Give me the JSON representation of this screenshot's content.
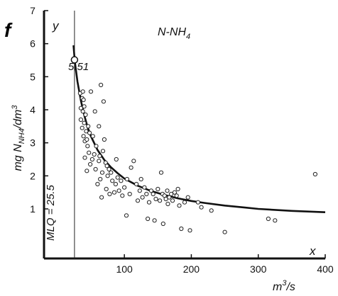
{
  "chart_data": {
    "type": "scatter",
    "panel_letter": "f",
    "title": "N-NH",
    "title_subscript": "4",
    "ylabel_prefix": "mg N",
    "ylabel_subscript": "NH4",
    "ylabel_suffix": "/dm",
    "ylabel_superscript": "3",
    "xlabel_base": "m",
    "xlabel_superscript": "3",
    "xlabel_suffix": "/s",
    "x_axis_letter": "x",
    "y_axis_letter": "y",
    "xlim": [
      -20,
      400
    ],
    "ylim": [
      -0.5,
      7
    ],
    "x_ticks": [
      100,
      200,
      300,
      400
    ],
    "y_ticks": [
      1,
      2,
      3,
      4,
      5,
      6,
      7
    ],
    "grid": false,
    "reference_line": {
      "label": "MLQ = 25.5",
      "x": 25.5
    },
    "highlight_point": {
      "x": 25.5,
      "y": 5.51,
      "label": "5.51"
    },
    "fit_curve": [
      [
        24,
        5.95
      ],
      [
        26,
        5.45
      ],
      [
        30,
        4.85
      ],
      [
        35,
        4.28
      ],
      [
        40,
        3.84
      ],
      [
        45,
        3.48
      ],
      [
        50,
        3.2
      ],
      [
        60,
        2.78
      ],
      [
        70,
        2.48
      ],
      [
        80,
        2.26
      ],
      [
        90,
        2.08
      ],
      [
        100,
        1.92
      ],
      [
        120,
        1.7
      ],
      [
        140,
        1.54
      ],
      [
        160,
        1.42
      ],
      [
        180,
        1.32
      ],
      [
        200,
        1.24
      ],
      [
        220,
        1.18
      ],
      [
        250,
        1.1
      ],
      [
        280,
        1.04
      ],
      [
        300,
        1.0
      ],
      [
        350,
        0.94
      ],
      [
        400,
        0.9
      ]
    ],
    "points": [
      [
        34,
        4.5
      ],
      [
        35,
        4.05
      ],
      [
        35,
        3.7
      ],
      [
        37,
        4.35
      ],
      [
        37,
        3.45
      ],
      [
        38,
        4.55
      ],
      [
        38,
        3.95
      ],
      [
        39,
        4.3
      ],
      [
        39,
        3.2
      ],
      [
        40,
        4.1
      ],
      [
        40,
        3.6
      ],
      [
        41,
        3.05
      ],
      [
        41,
        2.55
      ],
      [
        42,
        3.85
      ],
      [
        43,
        3.35
      ],
      [
        44,
        3.1
      ],
      [
        44,
        2.15
      ],
      [
        45,
        2.9
      ],
      [
        46,
        3.5
      ],
      [
        47,
        2.7
      ],
      [
        48,
        3.3
      ],
      [
        49,
        2.35
      ],
      [
        50,
        4.55
      ],
      [
        52,
        2.5
      ],
      [
        53,
        3.2
      ],
      [
        55,
        2.65
      ],
      [
        56,
        3.95
      ],
      [
        57,
        2.2
      ],
      [
        58,
        2.9
      ],
      [
        60,
        1.75
      ],
      [
        62,
        2.45
      ],
      [
        62,
        3.5
      ],
      [
        63,
        2.6
      ],
      [
        64,
        1.9
      ],
      [
        65,
        4.75
      ],
      [
        66,
        1.35
      ],
      [
        67,
        2.1
      ],
      [
        68,
        2.75
      ],
      [
        69,
        4.25
      ],
      [
        70,
        3.1
      ],
      [
        72,
        2.4
      ],
      [
        73,
        1.6
      ],
      [
        74,
        2.3
      ],
      [
        75,
        2.0
      ],
      [
        77,
        2.2
      ],
      [
        78,
        1.45
      ],
      [
        80,
        2.1
      ],
      [
        82,
        1.85
      ],
      [
        85,
        1.5
      ],
      [
        87,
        1.75
      ],
      [
        88,
        2.5
      ],
      [
        90,
        1.95
      ],
      [
        92,
        1.55
      ],
      [
        95,
        1.85
      ],
      [
        97,
        1.4
      ],
      [
        100,
        1.65
      ],
      [
        103,
        0.8
      ],
      [
        104,
        1.9
      ],
      [
        108,
        1.45
      ],
      [
        110,
        2.25
      ],
      [
        114,
        2.45
      ],
      [
        118,
        1.75
      ],
      [
        120,
        1.25
      ],
      [
        123,
        1.55
      ],
      [
        125,
        1.9
      ],
      [
        127,
        1.35
      ],
      [
        130,
        1.65
      ],
      [
        133,
        1.45
      ],
      [
        135,
        0.7
      ],
      [
        137,
        1.2
      ],
      [
        140,
        1.55
      ],
      [
        143,
        1.45
      ],
      [
        145,
        0.65
      ],
      [
        147,
        1.3
      ],
      [
        150,
        1.6
      ],
      [
        153,
        1.25
      ],
      [
        155,
        2.1
      ],
      [
        157,
        1.45
      ],
      [
        158,
        0.55
      ],
      [
        160,
        1.4
      ],
      [
        162,
        1.3
      ],
      [
        164,
        1.55
      ],
      [
        165,
        1.15
      ],
      [
        167,
        1.35
      ],
      [
        170,
        1.45
      ],
      [
        172,
        1.25
      ],
      [
        175,
        1.5
      ],
      [
        178,
        1.4
      ],
      [
        180,
        1.6
      ],
      [
        182,
        1.1
      ],
      [
        185,
        0.4
      ],
      [
        190,
        1.2
      ],
      [
        195,
        1.35
      ],
      [
        198,
        0.35
      ],
      [
        210,
        1.2
      ],
      [
        215,
        1.05
      ],
      [
        230,
        0.95
      ],
      [
        250,
        0.3
      ],
      [
        315,
        0.7
      ],
      [
        325,
        0.65
      ],
      [
        385,
        2.05
      ]
    ]
  }
}
